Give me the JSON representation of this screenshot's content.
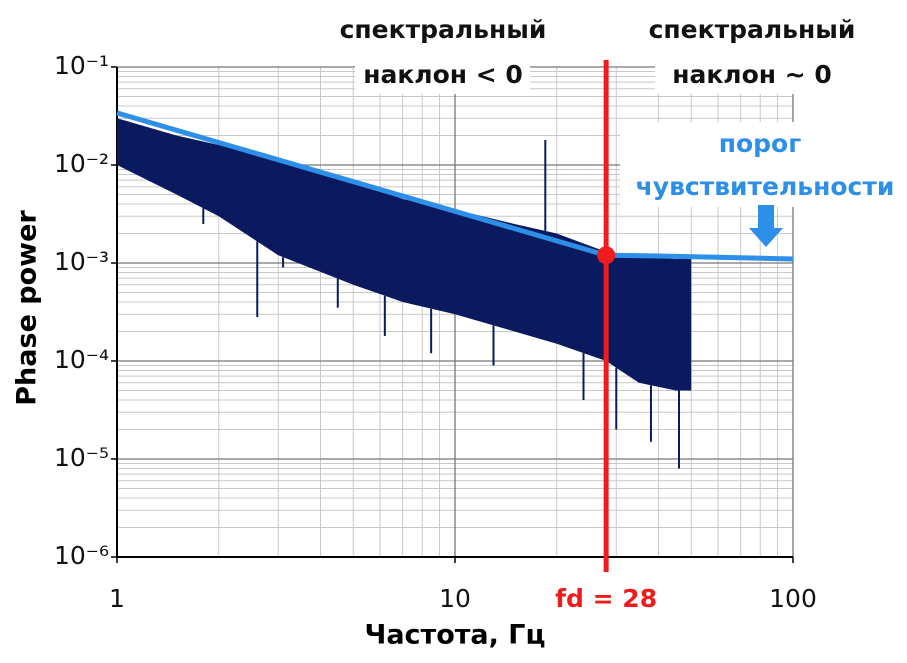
{
  "chart_data": {
    "type": "spectrum",
    "xlabel": "Частота, Гц",
    "ylabel": "Phase power",
    "xscale": "log",
    "yscale": "log",
    "xlim": [
      1,
      100
    ],
    "ylim": [
      1e-06,
      0.1
    ],
    "xticks": [
      1,
      10,
      100
    ],
    "yticks": [
      {
        "value": 0.1,
        "label": "10⁻¹"
      },
      {
        "value": 0.01,
        "label": "10⁻²"
      },
      {
        "value": 0.001,
        "label": "10⁻³"
      },
      {
        "value": 0.0001,
        "label": "10⁻⁴"
      },
      {
        "value": 1e-05,
        "label": "10⁻⁵"
      },
      {
        "value": 1e-06,
        "label": "10⁻⁶"
      }
    ],
    "grid": true,
    "minor_grid": true,
    "spectrum": {
      "color": "#0b1a5e",
      "x": [
        1,
        1.5,
        2,
        3,
        5,
        7,
        10,
        15,
        20,
        28,
        35,
        45,
        50
      ],
      "upper": [
        0.03,
        0.02,
        0.016,
        0.011,
        0.007,
        0.0045,
        0.0035,
        0.0025,
        0.002,
        0.0013,
        0.0012,
        0.0011,
        0.0011
      ],
      "lower": [
        0.01,
        0.005,
        0.003,
        0.0012,
        0.0006,
        0.0004,
        0.0003,
        0.0002,
        0.00015,
        0.0001,
        6e-05,
        5e-05,
        5e-05
      ],
      "spikes_x": [
        1.25,
        1.8,
        2.6,
        3.1,
        4.5,
        6.2,
        8.5,
        13,
        18.5,
        24,
        30,
        38,
        46
      ],
      "spikes": [
        0.02,
        0.0025,
        0.00028,
        0.0009,
        0.00035,
        0.00018,
        0.00012,
        9e-05,
        0.018,
        4e-05,
        2e-05,
        1.5e-05,
        8e-06
      ]
    },
    "threshold": {
      "color": "#2e8fe8",
      "x": [
        1,
        28,
        40,
        100
      ],
      "values": [
        0.034,
        0.0012,
        0.00118,
        0.0011
      ]
    },
    "fd": {
      "label": "fd = 28",
      "value": 28,
      "power": 0.0012,
      "color": "#ee1c1c"
    },
    "annotations": {
      "left_slope": [
        "спектральный",
        "наклон < 0"
      ],
      "right_slope": [
        "спектральный",
        "наклон ~ 0"
      ],
      "sensitivity": [
        "порог",
        "чувствительности"
      ]
    }
  }
}
